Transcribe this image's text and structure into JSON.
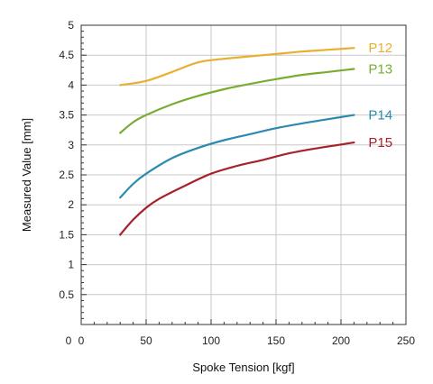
{
  "chart_data": {
    "type": "line",
    "xlabel": "Spoke Tension [kgf]",
    "ylabel": "Measured Value [mm]",
    "xlim": [
      0,
      250
    ],
    "ylim": [
      0,
      5
    ],
    "x_ticks": [
      "0",
      "50",
      "100",
      "150",
      "200",
      "250"
    ],
    "y_ticks": [
      "0.5",
      "1",
      "1.5",
      "2",
      "2.5",
      "3",
      "3.5",
      "4",
      "4.5",
      "5"
    ],
    "grid": true,
    "legend": "inline-right",
    "series": [
      {
        "name": "P12",
        "color": "#e8b030",
        "points": [
          [
            30,
            4.0
          ],
          [
            50,
            4.07
          ],
          [
            70,
            4.22
          ],
          [
            90,
            4.38
          ],
          [
            110,
            4.44
          ],
          [
            130,
            4.48
          ],
          [
            150,
            4.52
          ],
          [
            170,
            4.56
          ],
          [
            190,
            4.59
          ],
          [
            210,
            4.62
          ]
        ]
      },
      {
        "name": "P13",
        "color": "#7aac33",
        "points": [
          [
            30,
            3.2
          ],
          [
            40,
            3.38
          ],
          [
            50,
            3.5
          ],
          [
            70,
            3.68
          ],
          [
            90,
            3.82
          ],
          [
            110,
            3.93
          ],
          [
            130,
            4.02
          ],
          [
            150,
            4.1
          ],
          [
            170,
            4.17
          ],
          [
            190,
            4.22
          ],
          [
            210,
            4.27
          ]
        ]
      },
      {
        "name": "P14",
        "color": "#2a8ab0",
        "points": [
          [
            30,
            2.12
          ],
          [
            40,
            2.35
          ],
          [
            50,
            2.52
          ],
          [
            70,
            2.78
          ],
          [
            90,
            2.95
          ],
          [
            110,
            3.08
          ],
          [
            130,
            3.18
          ],
          [
            150,
            3.28
          ],
          [
            170,
            3.36
          ],
          [
            190,
            3.43
          ],
          [
            210,
            3.5
          ]
        ]
      },
      {
        "name": "P15",
        "color": "#a8202a",
        "points": [
          [
            30,
            1.5
          ],
          [
            40,
            1.75
          ],
          [
            50,
            1.95
          ],
          [
            60,
            2.1
          ],
          [
            80,
            2.32
          ],
          [
            100,
            2.52
          ],
          [
            120,
            2.65
          ],
          [
            140,
            2.75
          ],
          [
            160,
            2.86
          ],
          [
            180,
            2.94
          ],
          [
            210,
            3.04
          ]
        ]
      }
    ]
  }
}
